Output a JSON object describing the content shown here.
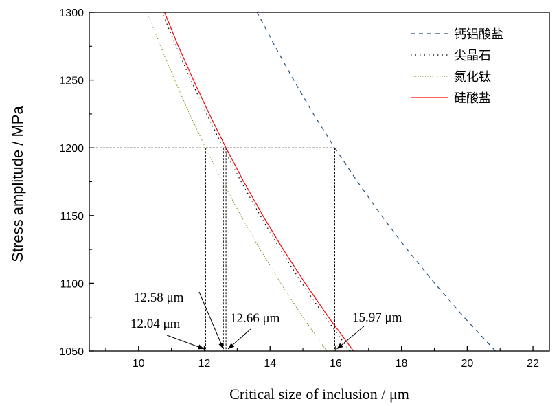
{
  "chart_data": {
    "type": "line",
    "title": "",
    "xlabel": "Critical size of inclusion / μm",
    "ylabel": "Stress amplitude / MPa",
    "xlim": [
      8.5,
      22.5
    ],
    "ylim": [
      1050,
      1300
    ],
    "xticks": [
      10,
      12,
      14,
      16,
      18,
      20,
      22
    ],
    "yticks": [
      1050,
      1100,
      1150,
      1200,
      1250,
      1300
    ],
    "grid": false,
    "legend_position": "top-right",
    "series": [
      {
        "name": "钙铝酸盐",
        "color": "#1f4e79",
        "style": "dashed",
        "y": [
          1050,
          1075,
          1100,
          1125,
          1150,
          1175,
          1200,
          1225,
          1250,
          1275,
          1300
        ],
        "x": [
          20.86,
          19.9,
          19.01,
          18.17,
          17.39,
          16.66,
          15.97,
          15.32,
          14.72,
          14.15,
          13.61
        ]
      },
      {
        "name": "尖晶石",
        "color": "#000000",
        "style": "dotted",
        "y": [
          1050,
          1075,
          1100,
          1125,
          1150,
          1175,
          1200,
          1225,
          1250,
          1275,
          1300
        ],
        "x": [
          16.43,
          15.68,
          14.97,
          14.31,
          13.7,
          13.12,
          12.58,
          12.07,
          11.59,
          11.14,
          10.72
        ]
      },
      {
        "name": "氮化钛",
        "color": "#808000",
        "style": "fine-dotted",
        "y": [
          1050,
          1075,
          1100,
          1125,
          1150,
          1175,
          1200,
          1225,
          1250,
          1275,
          1300
        ],
        "x": [
          15.73,
          15.0,
          14.33,
          13.7,
          13.11,
          12.56,
          12.04,
          11.55,
          11.1,
          10.67,
          10.26
        ]
      },
      {
        "name": "硅酸盐",
        "color": "#ff0000",
        "style": "solid",
        "y": [
          1050,
          1075,
          1100,
          1125,
          1150,
          1175,
          1200,
          1225,
          1250,
          1275,
          1300
        ],
        "x": [
          16.54,
          15.78,
          15.07,
          14.4,
          13.78,
          13.2,
          12.66,
          12.15,
          11.67,
          11.21,
          10.79
        ]
      }
    ],
    "reference_stress": 1200,
    "annotations": [
      {
        "text": "12.58 μm",
        "x": 12.58
      },
      {
        "text": "12.04 μm",
        "x": 12.04
      },
      {
        "text": "12.66 μm",
        "x": 12.66
      },
      {
        "text": "15.97 μm",
        "x": 15.97
      }
    ]
  }
}
